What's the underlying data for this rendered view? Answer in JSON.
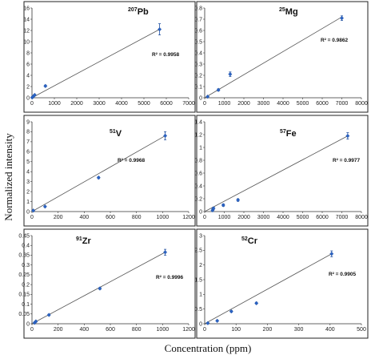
{
  "figure": {
    "ylabel": "Normalized intensity",
    "xlabel": "Concentration (ppm)"
  },
  "chart_data": [
    {
      "type": "scatter",
      "panel": "207Pb",
      "isotope_mass": "207",
      "element": "Pb",
      "r2_label": "R² = 0.9958",
      "xlim": [
        0,
        7000
      ],
      "ylim": [
        0,
        16
      ],
      "xticks": [
        0,
        1000,
        2000,
        3000,
        4000,
        5000,
        6000,
        7000
      ],
      "yticks": [
        0,
        2,
        4,
        6,
        8,
        10,
        12,
        14,
        16
      ],
      "points": [
        {
          "x": 10,
          "y": 0.05,
          "err": 0.1
        },
        {
          "x": 60,
          "y": 0.25,
          "err": 0.1
        },
        {
          "x": 120,
          "y": 0.5,
          "err": 0.1
        },
        {
          "x": 600,
          "y": 2.1,
          "err": 0.15
        },
        {
          "x": 5700,
          "y": 12.2,
          "err": 1.0
        }
      ],
      "fit": {
        "x": [
          0,
          5700
        ],
        "y": [
          0,
          12.2
        ]
      }
    },
    {
      "type": "scatter",
      "panel": "25Mg",
      "isotope_mass": "25",
      "element": "Mg",
      "r2_label": "R² = 0.9862",
      "xlim": [
        0,
        8000
      ],
      "ylim": [
        0,
        0.8
      ],
      "xticks": [
        0,
        1000,
        2000,
        3000,
        4000,
        5000,
        6000,
        7000,
        8000
      ],
      "yticks": [
        0,
        0.1,
        0.2,
        0.3,
        0.4,
        0.5,
        0.6,
        0.7,
        0.8
      ],
      "points": [
        {
          "x": 150,
          "y": 0.01,
          "err": 0.005
        },
        {
          "x": 700,
          "y": 0.07,
          "err": 0.01
        },
        {
          "x": 1300,
          "y": 0.21,
          "err": 0.02
        },
        {
          "x": 7000,
          "y": 0.71,
          "err": 0.02
        }
      ],
      "fit": {
        "x": [
          0,
          7000
        ],
        "y": [
          0,
          0.72
        ]
      }
    },
    {
      "type": "scatter",
      "panel": "51V",
      "isotope_mass": "51",
      "element": "V",
      "r2_label": "R² = 0.9968",
      "xlim": [
        0,
        1200
      ],
      "ylim": [
        0,
        9
      ],
      "xticks": [
        0,
        200,
        400,
        600,
        800,
        1000,
        1200
      ],
      "yticks": [
        0,
        1,
        2,
        3,
        4,
        5,
        6,
        7,
        8,
        9
      ],
      "points": [
        {
          "x": 10,
          "y": 0.1,
          "err": 0.05
        },
        {
          "x": 100,
          "y": 0.5,
          "err": 0.05
        },
        {
          "x": 510,
          "y": 3.4,
          "err": 0.1
        },
        {
          "x": 1020,
          "y": 7.6,
          "err": 0.4
        }
      ],
      "fit": {
        "x": [
          0,
          1020
        ],
        "y": [
          0,
          7.6
        ]
      }
    },
    {
      "type": "scatter",
      "panel": "57Fe",
      "isotope_mass": "57",
      "element": "Fe",
      "r2_label": "R² = 0.9977",
      "xlim": [
        0,
        8000
      ],
      "ylim": [
        0,
        1.4
      ],
      "xticks": [
        0,
        1000,
        2000,
        3000,
        4000,
        5000,
        6000,
        7000,
        8000
      ],
      "yticks": [
        0,
        0.2,
        0.4,
        0.6,
        0.8,
        1,
        1.2,
        1.4
      ],
      "points": [
        {
          "x": 400,
          "y": 0.02,
          "err": 0.02
        },
        {
          "x": 450,
          "y": 0.05,
          "err": 0.02
        },
        {
          "x": 950,
          "y": 0.1,
          "err": 0.02
        },
        {
          "x": 1700,
          "y": 0.18,
          "err": 0.02
        },
        {
          "x": 7300,
          "y": 1.18,
          "err": 0.05
        }
      ],
      "fit": {
        "x": [
          0,
          7300
        ],
        "y": [
          0,
          1.18
        ]
      }
    },
    {
      "type": "scatter",
      "panel": "91Zr",
      "isotope_mass": "91",
      "element": "Zr",
      "r2_label": "R² = 0.9996",
      "xlim": [
        0,
        1200
      ],
      "ylim": [
        0,
        0.45
      ],
      "xticks": [
        0,
        200,
        400,
        600,
        800,
        1000,
        1200
      ],
      "yticks": [
        0,
        0.05,
        0.1,
        0.15,
        0.2,
        0.25,
        0.3,
        0.35,
        0.4,
        0.45
      ],
      "points": [
        {
          "x": 20,
          "y": 0.005,
          "err": 0.003
        },
        {
          "x": 30,
          "y": 0.012,
          "err": 0.003
        },
        {
          "x": 130,
          "y": 0.045,
          "err": 0.004
        },
        {
          "x": 520,
          "y": 0.18,
          "err": 0.005
        },
        {
          "x": 1020,
          "y": 0.365,
          "err": 0.015
        }
      ],
      "fit": {
        "x": [
          0,
          1020
        ],
        "y": [
          0,
          0.365
        ]
      }
    },
    {
      "type": "scatter",
      "panel": "52Cr",
      "isotope_mass": "52",
      "element": "Cr",
      "r2_label": "R² = 0.9905",
      "xlim": [
        0,
        500
      ],
      "ylim": [
        0,
        3
      ],
      "xticks": [
        0,
        100,
        200,
        300,
        400,
        500
      ],
      "yticks": [
        0,
        0.5,
        1,
        1.5,
        2,
        2.5,
        3
      ],
      "points": [
        {
          "x": 10,
          "y": 0.02,
          "err": 0.02
        },
        {
          "x": 40,
          "y": 0.1,
          "err": 0.02
        },
        {
          "x": 85,
          "y": 0.42,
          "err": 0.03
        },
        {
          "x": 165,
          "y": 0.7,
          "err": 0.03
        },
        {
          "x": 405,
          "y": 2.38,
          "err": 0.1
        }
      ],
      "fit": {
        "x": [
          0,
          405
        ],
        "y": [
          0,
          2.38
        ]
      }
    }
  ]
}
